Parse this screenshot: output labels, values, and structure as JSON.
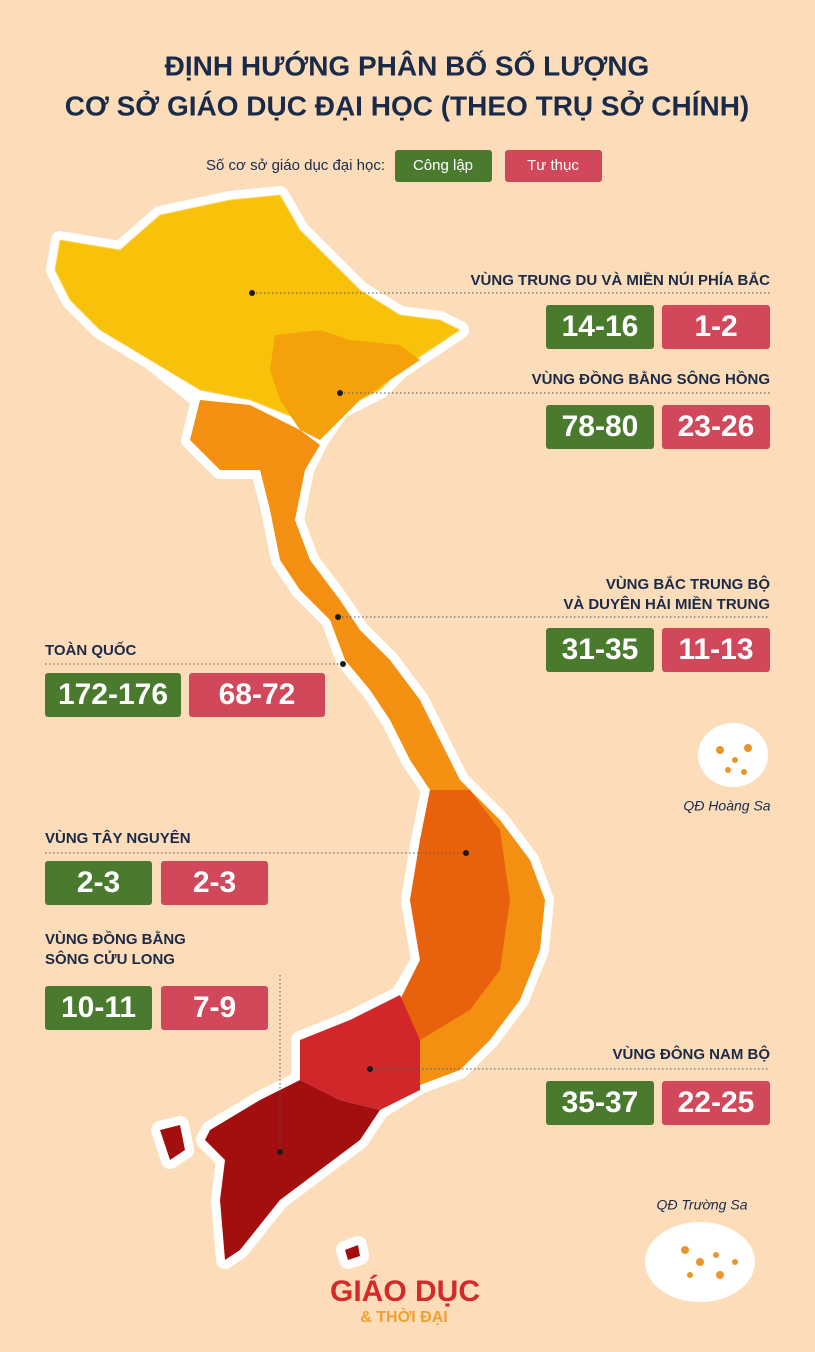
{
  "title": {
    "lines": [
      "ĐỊNH HƯỚNG PHÂN BỐ SỐ LƯỢNG",
      "CƠ SỞ GIÁO DỤC ĐẠI HỌC (THEO TRỤ SỞ CHÍNH)"
    ]
  },
  "legend": {
    "label": "Số cơ sở giáo dục đại học:",
    "items": [
      "Công lập",
      "Tư thục"
    ]
  },
  "regions": [
    {
      "name_lines": [
        "VÙNG TRUNG DU VÀ MIỀN NÚI PHÍA BẮC"
      ],
      "public": "14-16",
      "private": "1-2"
    },
    {
      "name_lines": [
        "VÙNG ĐỒNG BẰNG SÔNG HỒNG"
      ],
      "public": "78-80",
      "private": "23-26"
    },
    {
      "name_lines": [
        "VÙNG BẮC TRUNG BỘ",
        "VÀ DUYÊN HẢI MIỀN TRUNG"
      ],
      "public": "31-35",
      "private": "11-13"
    },
    {
      "name_lines": [
        "TOÀN QUỐC"
      ],
      "public": "172-176",
      "private": "68-72"
    },
    {
      "name_lines": [
        "VÙNG TÂY NGUYÊN"
      ],
      "public": "2-3",
      "private": "2-3"
    },
    {
      "name_lines": [
        "VÙNG ĐỒNG BẰNG",
        "SÔNG CỬU LONG"
      ],
      "public": "10-11",
      "private": "7-9"
    },
    {
      "name_lines": [
        "VÙNG ĐÔNG NAM BỘ"
      ],
      "public": "35-37",
      "private": "22-25"
    }
  ],
  "islands": [
    "QĐ Hoàng Sa",
    "QĐ Trường Sa"
  ],
  "logo": {
    "main": "GIÁO DỤC",
    "joiner": "&",
    "sub": "THỜI ĐẠI"
  }
}
